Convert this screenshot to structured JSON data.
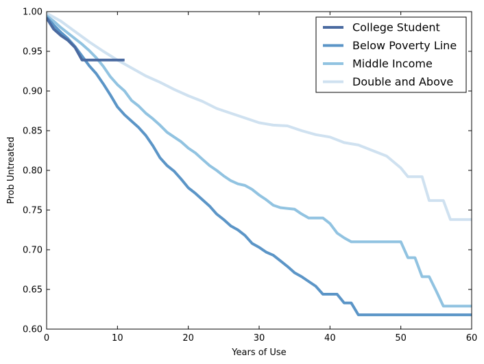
{
  "chart_data": {
    "type": "line",
    "title": "",
    "xlabel": "Years of Use",
    "ylabel": "Prob Untreated",
    "xlim": [
      0,
      60
    ],
    "ylim": [
      0.6,
      1.0
    ],
    "xticks": [
      0,
      10,
      20,
      30,
      40,
      50,
      60
    ],
    "yticks": [
      0.6,
      0.65,
      0.7,
      0.75,
      0.8,
      0.85,
      0.9,
      0.95,
      1.0
    ],
    "xtick_labels": [
      "0",
      "10",
      "20",
      "30",
      "40",
      "50",
      "60"
    ],
    "ytick_labels": [
      "0.60",
      "0.65",
      "0.70",
      "0.75",
      "0.80",
      "0.85",
      "0.90",
      "0.95",
      "1.00"
    ],
    "grid": false,
    "legend_position": "top-right",
    "series": [
      {
        "name": "College Student",
        "color": "#4a6aa0",
        "x": [
          0,
          1,
          2,
          3,
          4,
          5,
          6,
          7,
          8,
          9,
          10,
          11
        ],
        "y": [
          0.992,
          0.978,
          0.97,
          0.964,
          0.955,
          0.939,
          0.939,
          0.939,
          0.939,
          0.939,
          0.939,
          0.939
        ]
      },
      {
        "name": "Below Poverty Line",
        "color": "#5b95c7",
        "x": [
          0,
          1,
          2,
          3,
          4,
          5,
          6,
          7,
          8,
          9,
          10,
          11,
          12,
          13,
          14,
          15,
          16,
          17,
          18,
          19,
          20,
          21,
          22,
          23,
          24,
          25,
          26,
          27,
          28,
          29,
          30,
          31,
          32,
          33,
          34,
          35,
          36,
          37,
          38,
          39,
          40,
          41,
          42,
          43,
          44,
          45,
          50,
          55,
          60
        ],
        "y": [
          0.993,
          0.983,
          0.974,
          0.966,
          0.956,
          0.944,
          0.932,
          0.922,
          0.909,
          0.895,
          0.88,
          0.87,
          0.862,
          0.854,
          0.844,
          0.831,
          0.816,
          0.806,
          0.799,
          0.789,
          0.778,
          0.771,
          0.763,
          0.755,
          0.745,
          0.738,
          0.73,
          0.725,
          0.718,
          0.708,
          0.703,
          0.697,
          0.693,
          0.686,
          0.679,
          0.671,
          0.666,
          0.66,
          0.654,
          0.644,
          0.644,
          0.644,
          0.633,
          0.633,
          0.618,
          0.618,
          0.618,
          0.618,
          0.618
        ]
      },
      {
        "name": "Middle Income",
        "color": "#91c3e1",
        "x": [
          0,
          1,
          2,
          3,
          4,
          5,
          6,
          7,
          8,
          9,
          10,
          11,
          12,
          13,
          14,
          15,
          16,
          17,
          18,
          19,
          20,
          21,
          22,
          23,
          24,
          25,
          26,
          27,
          28,
          29,
          30,
          31,
          32,
          33,
          34,
          35,
          36,
          37,
          38,
          39,
          40,
          41,
          42,
          43,
          44,
          45,
          46,
          47,
          48,
          49,
          50,
          51,
          52,
          53,
          54,
          55,
          56,
          57,
          58,
          59,
          60
        ],
        "y": [
          0.995,
          0.988,
          0.98,
          0.973,
          0.966,
          0.959,
          0.951,
          0.942,
          0.931,
          0.918,
          0.908,
          0.9,
          0.888,
          0.881,
          0.872,
          0.865,
          0.857,
          0.848,
          0.842,
          0.836,
          0.828,
          0.822,
          0.814,
          0.806,
          0.8,
          0.793,
          0.787,
          0.783,
          0.781,
          0.776,
          0.769,
          0.763,
          0.756,
          0.753,
          0.752,
          0.751,
          0.745,
          0.74,
          0.74,
          0.74,
          0.733,
          0.721,
          0.715,
          0.71,
          0.71,
          0.71,
          0.71,
          0.71,
          0.71,
          0.71,
          0.71,
          0.69,
          0.69,
          0.666,
          0.666,
          0.648,
          0.629,
          0.629,
          0.629,
          0.629,
          0.629
        ]
      },
      {
        "name": "Double and Above",
        "color": "#cfe1f0",
        "x": [
          0,
          2,
          4,
          6,
          8,
          10,
          12,
          14,
          16,
          18,
          20,
          22,
          24,
          26,
          28,
          30,
          32,
          34,
          36,
          38,
          40,
          42,
          44,
          46,
          48,
          50,
          51,
          52,
          53,
          54,
          55,
          56,
          57,
          58,
          60
        ],
        "y": [
          0.998,
          0.988,
          0.975,
          0.962,
          0.95,
          0.939,
          0.929,
          0.919,
          0.911,
          0.902,
          0.894,
          0.887,
          0.878,
          0.872,
          0.866,
          0.86,
          0.857,
          0.856,
          0.85,
          0.845,
          0.842,
          0.835,
          0.832,
          0.825,
          0.818,
          0.803,
          0.792,
          0.792,
          0.792,
          0.762,
          0.762,
          0.762,
          0.738,
          0.738,
          0.738
        ]
      }
    ]
  }
}
